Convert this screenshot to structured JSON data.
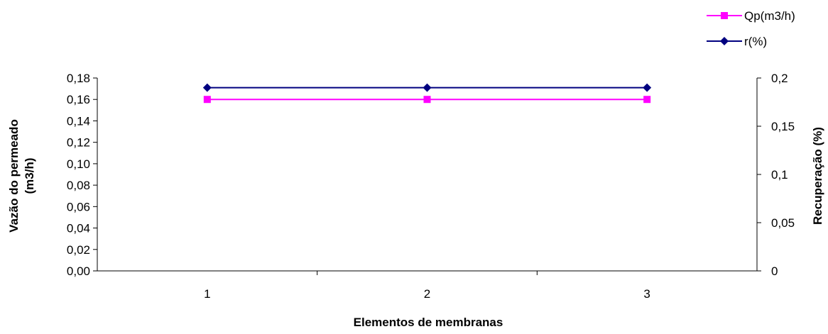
{
  "chart_data": {
    "type": "line",
    "title": "",
    "categories": [
      "1",
      "2",
      "3"
    ],
    "xlabel": "Elementos de membranas",
    "ylabel_left": [
      "Vazão do permeado",
      "(m3/h)"
    ],
    "ylabel_right": "Recuperação (%)",
    "ylim_left": [
      0,
      0.18
    ],
    "ylim_right": [
      0,
      0.2
    ],
    "yticks_left": [
      "0,00",
      "0,02",
      "0,04",
      "0,06",
      "0,08",
      "0,10",
      "0,12",
      "0,14",
      "0,16",
      "0,18"
    ],
    "yticks_right": [
      "0",
      "0,05",
      "0,1",
      "0,15",
      "0,2"
    ],
    "grid": false,
    "legend_position": "top-right",
    "series": [
      {
        "name": "Qp(m3/h)",
        "axis": "left",
        "values": [
          0.16,
          0.16,
          0.16
        ],
        "color": "#FF00FF",
        "marker": "square"
      },
      {
        "name": "r(%)",
        "axis": "right",
        "values": [
          0.19,
          0.19,
          0.19
        ],
        "color": "#000080",
        "marker": "diamond"
      }
    ]
  }
}
